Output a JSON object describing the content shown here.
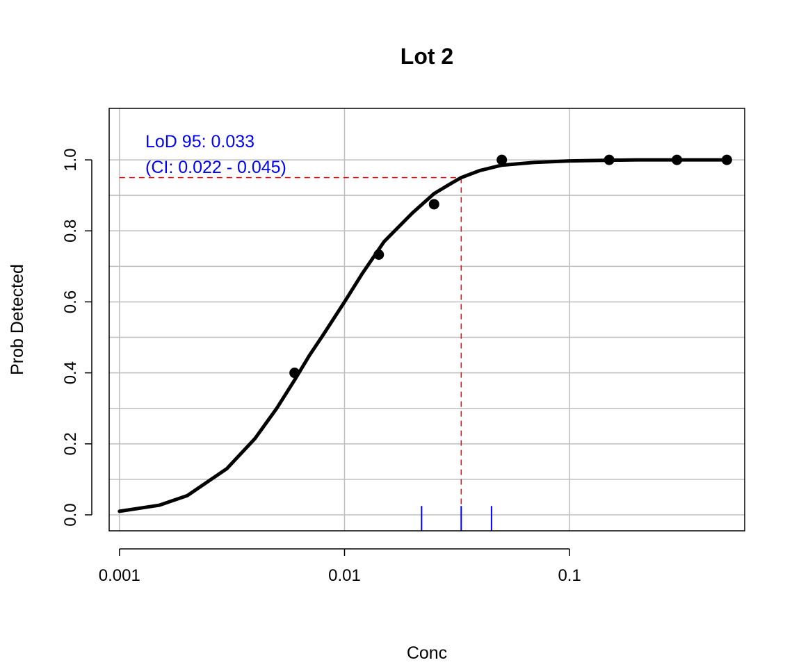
{
  "chart_data": {
    "type": "scatter",
    "title": "Lot 2",
    "xlabel": "Conc",
    "ylabel": "Prob Detected",
    "x_scale": "log",
    "xlim": [
      0.0009,
      0.6
    ],
    "ylim": [
      -0.045,
      1.145
    ],
    "x_ticks": [
      0.001,
      0.01,
      0.1
    ],
    "x_tick_labels": [
      "0.001",
      "0.01",
      "0.1"
    ],
    "y_ticks": [
      0,
      0.2,
      0.4,
      0.6,
      0.8,
      1.0
    ],
    "y_tick_labels": [
      "0.0",
      "0.2",
      "0.4",
      "0.6",
      "0.8",
      "1.0"
    ],
    "y_grid": [
      0,
      0.1,
      0.2,
      0.3,
      0.4,
      0.5,
      0.6,
      0.7,
      0.8,
      0.9,
      1.0
    ],
    "grid": true,
    "points": {
      "x": [
        0.006,
        0.0142,
        0.025,
        0.05,
        0.15,
        0.3,
        0.5
      ],
      "y": [
        0.4,
        0.733,
        0.875,
        1.0,
        1.0,
        1.0,
        1.0
      ]
    },
    "curve": {
      "x": [
        0.001,
        0.0015,
        0.002,
        0.003,
        0.004,
        0.005,
        0.006,
        0.007,
        0.008,
        0.01,
        0.012,
        0.015,
        0.02,
        0.025,
        0.03,
        0.033,
        0.04,
        0.05,
        0.07,
        0.1,
        0.15,
        0.2,
        0.3,
        0.5
      ],
      "y": [
        0.01,
        0.027,
        0.054,
        0.13,
        0.215,
        0.3,
        0.38,
        0.45,
        0.505,
        0.6,
        0.68,
        0.77,
        0.85,
        0.905,
        0.935,
        0.95,
        0.97,
        0.985,
        0.993,
        0.997,
        0.999,
        1.0,
        1.0,
        1.0
      ]
    },
    "lod": {
      "level": 0.95,
      "value": 0.033,
      "ci": [
        0.022,
        0.045
      ]
    },
    "annotation": {
      "line1": "LoD 95: 0.033",
      "line2": "(CI: 0.022 - 0.045)"
    },
    "colors": {
      "points": "#000000",
      "curve": "#000000",
      "lod_lines": "#ff0000",
      "ci_ticks": "#0000ff",
      "annotation": "#0000ff",
      "grid": "#bebebe"
    }
  }
}
